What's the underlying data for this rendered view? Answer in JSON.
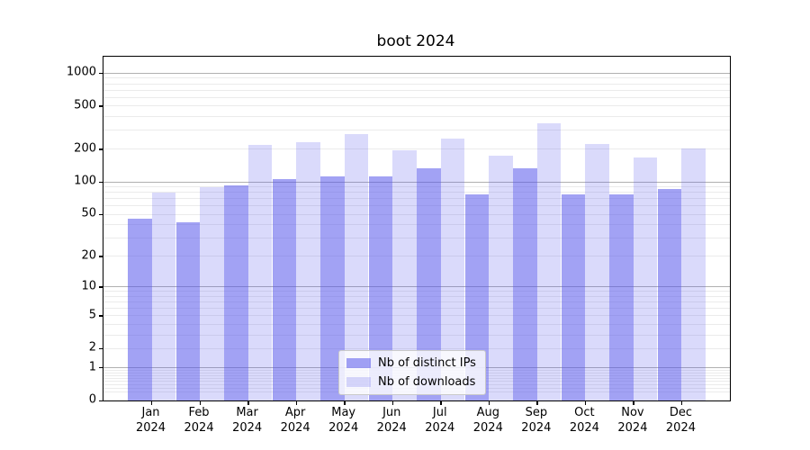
{
  "title": "boot 2024",
  "colors": {
    "bar_base": "#5555eb",
    "ips_alpha": 0.55,
    "downloads_alpha": 0.22,
    "major_grid": "#b0b0b0",
    "minor_grid": "#ebebeb",
    "axis": "#000000",
    "legend_border": "#c9c9c9"
  },
  "chart_data": {
    "type": "bar",
    "title": "boot 2024",
    "scale": "log1p",
    "grid": true,
    "legend_position": "lower-center",
    "categories": [
      {
        "month": "Jan",
        "year": "2024"
      },
      {
        "month": "Feb",
        "year": "2024"
      },
      {
        "month": "Mar",
        "year": "2024"
      },
      {
        "month": "Apr",
        "year": "2024"
      },
      {
        "month": "May",
        "year": "2024"
      },
      {
        "month": "Jun",
        "year": "2024"
      },
      {
        "month": "Jul",
        "year": "2024"
      },
      {
        "month": "Aug",
        "year": "2024"
      },
      {
        "month": "Sep",
        "year": "2024"
      },
      {
        "month": "Oct",
        "year": "2024"
      },
      {
        "month": "Nov",
        "year": "2024"
      },
      {
        "month": "Dec",
        "year": "2024"
      }
    ],
    "series": [
      {
        "name": "Nb of distinct IPs",
        "values": [
          45,
          42,
          93,
          107,
          112,
          112,
          133,
          77,
          134,
          77,
          77,
          86
        ]
      },
      {
        "name": "Nb of downloads",
        "values": [
          80,
          89,
          219,
          231,
          278,
          197,
          250,
          175,
          349,
          222,
          169,
          202
        ]
      }
    ],
    "ytick_values": [
      0,
      1,
      2,
      5,
      10,
      20,
      50,
      100,
      200,
      500,
      1000
    ],
    "ytick_labels": [
      "0",
      "1",
      "2",
      "5",
      "10",
      "20",
      "50",
      "100",
      "200",
      "500",
      "1000"
    ],
    "ylim": [
      0,
      1400
    ],
    "xlabel": "",
    "ylabel": ""
  }
}
